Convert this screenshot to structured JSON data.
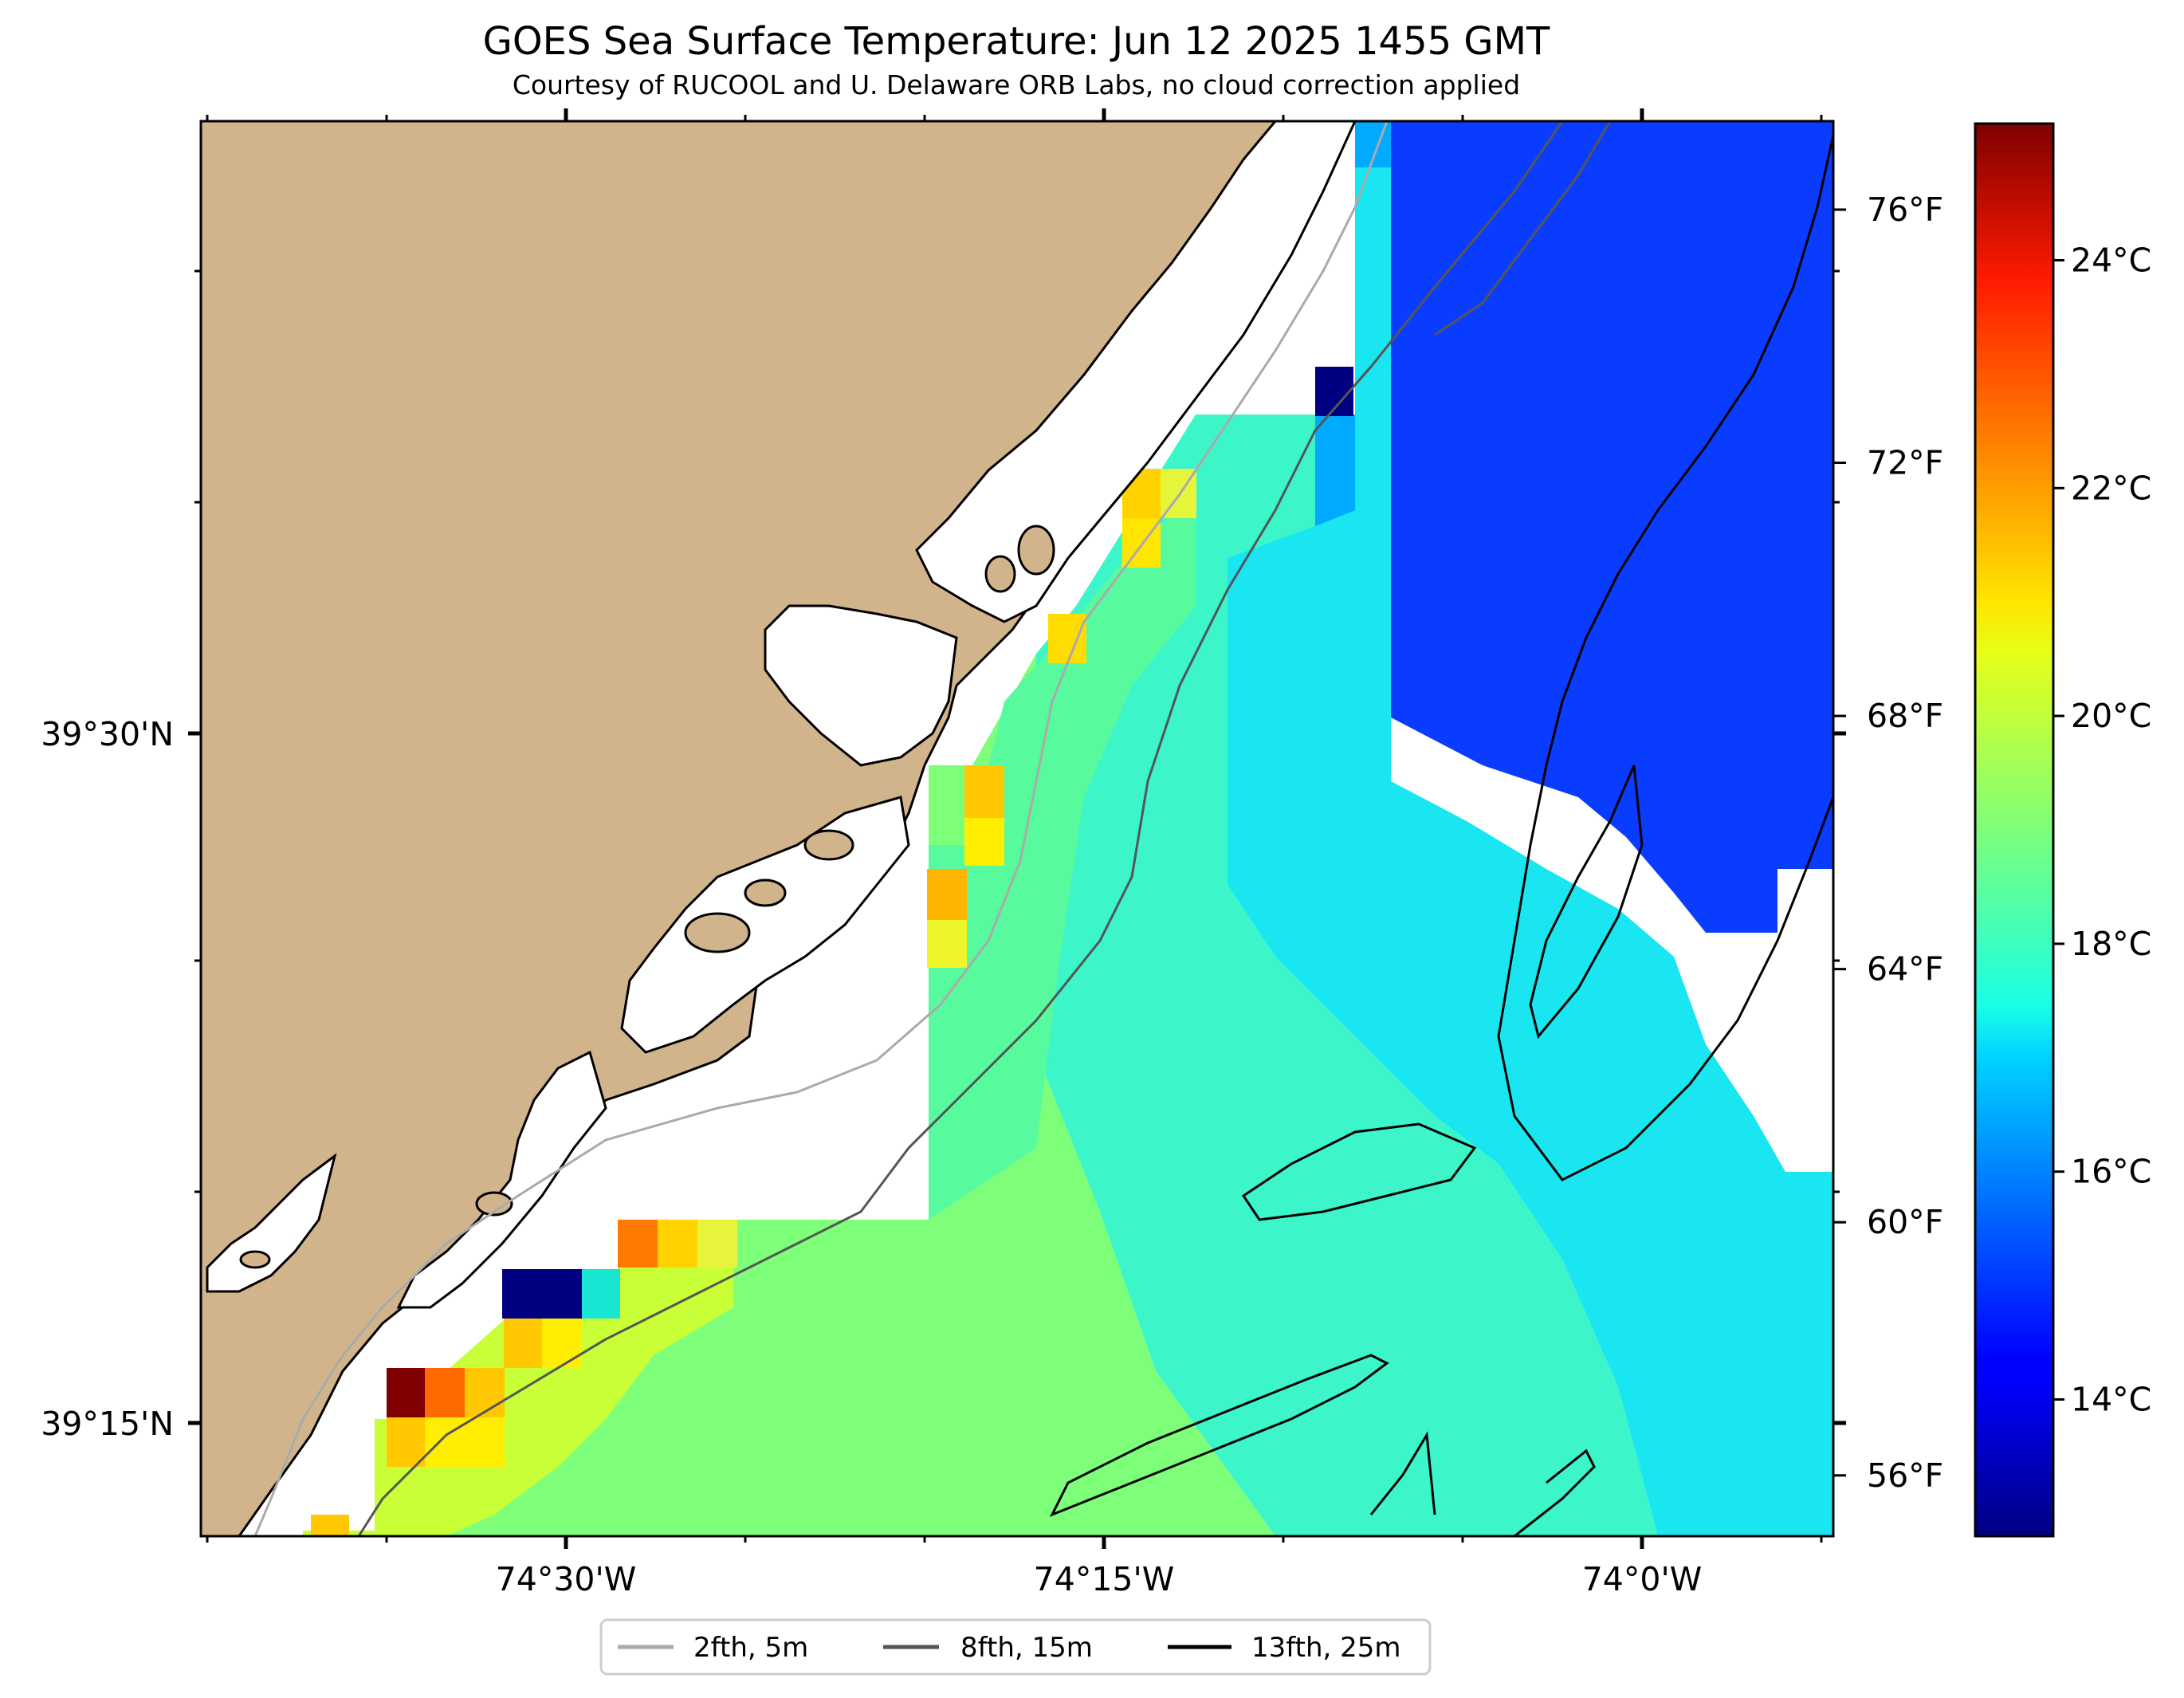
{
  "title": "GOES Sea Surface Temperature: Jun 12 2025 1455 GMT",
  "subtitle": "Courtesy of RUCOOL and U. Delaware ORB Labs, no cloud correction applied",
  "map": {
    "lon_labels": [
      "74°30'W",
      "74°15'W",
      "74°0'W"
    ],
    "lat_labels": [
      "39°30'N",
      "39°15'N"
    ],
    "land_color": "#d2b48c",
    "coast_color": "#000000"
  },
  "colorbar": {
    "colormap": "jet",
    "vmin_c": 12.8,
    "vmax_c": 25.2,
    "celsius_labels": [
      "14°C",
      "16°C",
      "18°C",
      "20°C",
      "22°C",
      "24°C"
    ],
    "fahrenheit_labels": [
      "56°F",
      "60°F",
      "64°F",
      "68°F",
      "72°F",
      "76°F"
    ]
  },
  "legend": {
    "items": [
      {
        "label": "2fth, 5m",
        "color": "#aaaaaa"
      },
      {
        "label": "8fth, 15m",
        "color": "#555555"
      },
      {
        "label": "13fth, 25m",
        "color": "#000000"
      }
    ]
  }
}
